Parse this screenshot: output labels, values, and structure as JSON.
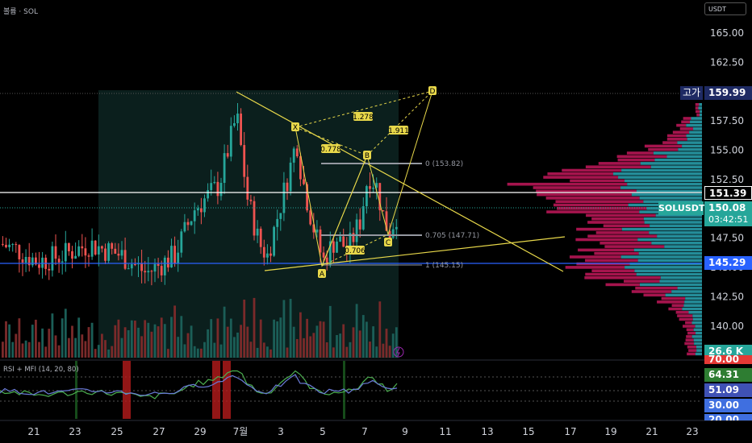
{
  "header": {
    "indicator_label": "볼륨 · SOL",
    "currency": "USDT"
  },
  "price_axis": {
    "labels": [
      "165.00",
      "162.50",
      "159.99",
      "157.50",
      "155.00",
      "152.50",
      "151.39",
      "150.08",
      "147.50",
      "145.29",
      "142.50",
      "140.00"
    ]
  },
  "tags": {
    "high_label": "고가",
    "high_value": "159.99",
    "line_value": "151.39",
    "symbol": "SOLUSDT",
    "last_price": "150.08",
    "countdown": "03:42:51",
    "support_value": "145.29",
    "volume_value": "26.6 K"
  },
  "rsi": {
    "label": "RSI + MFI (14, 20, 80)",
    "axis_values": [
      "70.00",
      "64.31",
      "51.09",
      "30.00",
      "20.00"
    ]
  },
  "time_axis": {
    "labels": [
      "21",
      "23",
      "25",
      "27",
      "29",
      "7월",
      "3",
      "5",
      "7",
      "9",
      "11",
      "13",
      "15",
      "17",
      "19",
      "21",
      "23"
    ]
  },
  "drawings": {
    "points": [
      "X",
      "A",
      "B",
      "C",
      "D"
    ],
    "ratios": [
      "1.278",
      "1.911",
      "0.778",
      "0.706"
    ],
    "fib_levels": [
      "0 (153.82)",
      "0.705 (147.71)",
      "1 (145.15)"
    ]
  },
  "colors": {
    "up": "#26a69a",
    "down": "#ef5350",
    "pattern": "#e8d84a",
    "support_line": "#2962ff",
    "profile_up": "#2aa6b4",
    "profile_down": "#c2185b",
    "rsi_line": "#4caf50",
    "mfi_line": "#6a7bd8"
  },
  "chart_data": {
    "type": "candlestick",
    "symbol": "SOLUSDT",
    "ylim": [
      138,
      166.5
    ],
    "x_ticks": [
      "21",
      "23",
      "25",
      "27",
      "29",
      "7월",
      "3",
      "5",
      "7",
      "9",
      "11",
      "13",
      "15",
      "17",
      "19",
      "21",
      "23"
    ],
    "y_ticks": [
      140.0,
      142.5,
      145.0,
      147.5,
      150.0,
      152.5,
      155.0,
      157.5,
      160.0,
      162.5,
      165.0
    ],
    "levels": {
      "high": 159.99,
      "white_line": 151.39,
      "last": 150.08,
      "support": 145.29
    },
    "harmonic_pattern": {
      "points": {
        "X": 156.6,
        "A": 145.1,
        "B": 154.0,
        "C": 147.9,
        "D": 161.1
      },
      "ratios": [
        1.278,
        1.911,
        0.778,
        0.706
      ]
    },
    "fib": [
      {
        "ratio": 0,
        "price": 153.82
      },
      {
        "ratio": 0.705,
        "price": 147.71
      },
      {
        "ratio": 1,
        "price": 145.15
      }
    ],
    "rsi_mfi": {
      "period": [
        14,
        20,
        80
      ],
      "rsi": 64.31,
      "mfi": 51.09,
      "bands": [
        70,
        30
      ]
    },
    "volume_last": "26.6 K"
  }
}
